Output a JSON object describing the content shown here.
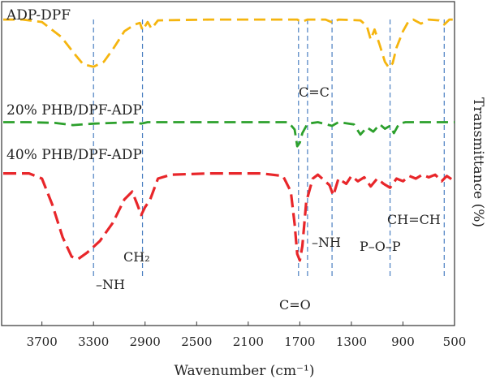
{
  "chart_data": {
    "type": "line",
    "xlabel": "Wavenumber (cm⁻¹)",
    "ylabel": "Transmittance (%)",
    "xlim": [
      4000,
      500
    ],
    "x_reversed": true,
    "x_ticks": [
      3700,
      3300,
      2900,
      2500,
      2100,
      1700,
      1300,
      900,
      500
    ],
    "grid": false,
    "y_ticks_shown": false,
    "series": [
      {
        "name": "ADP-DPF",
        "color": "#f5b50f",
        "dash": "dashed",
        "points": [
          [
            4000,
            0.96
          ],
          [
            3850,
            0.96
          ],
          [
            3700,
            0.93
          ],
          [
            3550,
            0.75
          ],
          [
            3450,
            0.55
          ],
          [
            3380,
            0.42
          ],
          [
            3300,
            0.39
          ],
          [
            3220,
            0.45
          ],
          [
            3150,
            0.6
          ],
          [
            3060,
            0.82
          ],
          [
            2980,
            0.9
          ],
          [
            2940,
            0.92
          ],
          [
            2920,
            0.83
          ],
          [
            2880,
            0.93
          ],
          [
            2850,
            0.85
          ],
          [
            2800,
            0.95
          ],
          [
            2400,
            0.96
          ],
          [
            2000,
            0.96
          ],
          [
            1720,
            0.96
          ],
          [
            1690,
            0.93
          ],
          [
            1640,
            0.96
          ],
          [
            1500,
            0.96
          ],
          [
            1440,
            0.92
          ],
          [
            1400,
            0.96
          ],
          [
            1230,
            0.95
          ],
          [
            1180,
            0.88
          ],
          [
            1150,
            0.72
          ],
          [
            1120,
            0.84
          ],
          [
            1080,
            0.65
          ],
          [
            1040,
            0.45
          ],
          [
            1010,
            0.38
          ],
          [
            980,
            0.43
          ],
          [
            950,
            0.62
          ],
          [
            900,
            0.82
          ],
          [
            860,
            0.93
          ],
          [
            820,
            0.96
          ],
          [
            760,
            0.91
          ],
          [
            700,
            0.96
          ],
          [
            620,
            0.95
          ],
          [
            580,
            0.9
          ],
          [
            540,
            0.96
          ],
          [
            500,
            0.96
          ]
        ]
      },
      {
        "name": "20% PHB/DPF-ADP",
        "color": "#2ca02c",
        "dash": "dashed",
        "points": [
          [
            4000,
            0.95
          ],
          [
            3800,
            0.95
          ],
          [
            3600,
            0.94
          ],
          [
            3460,
            0.91
          ],
          [
            3300,
            0.93
          ],
          [
            3000,
            0.95
          ],
          [
            2930,
            0.93
          ],
          [
            2880,
            0.95
          ],
          [
            2000,
            0.95
          ],
          [
            1790,
            0.95
          ],
          [
            1740,
            0.85
          ],
          [
            1720,
            0.62
          ],
          [
            1700,
            0.67
          ],
          [
            1680,
            0.8
          ],
          [
            1640,
            0.93
          ],
          [
            1560,
            0.95
          ],
          [
            1450,
            0.9
          ],
          [
            1400,
            0.95
          ],
          [
            1280,
            0.92
          ],
          [
            1230,
            0.78
          ],
          [
            1180,
            0.88
          ],
          [
            1130,
            0.82
          ],
          [
            1080,
            0.92
          ],
          [
            1040,
            0.86
          ],
          [
            1000,
            0.9
          ],
          [
            970,
            0.8
          ],
          [
            930,
            0.93
          ],
          [
            880,
            0.95
          ],
          [
            600,
            0.95
          ],
          [
            500,
            0.95
          ]
        ]
      },
      {
        "name": "40% PHB/DPF-ADP",
        "color": "#e8262a",
        "dash": "dashed",
        "points": [
          [
            4000,
            0.94
          ],
          [
            3800,
            0.94
          ],
          [
            3700,
            0.9
          ],
          [
            3620,
            0.7
          ],
          [
            3540,
            0.45
          ],
          [
            3470,
            0.3
          ],
          [
            3420,
            0.28
          ],
          [
            3350,
            0.33
          ],
          [
            3250,
            0.42
          ],
          [
            3150,
            0.56
          ],
          [
            3060,
            0.74
          ],
          [
            3000,
            0.8
          ],
          [
            2960,
            0.7
          ],
          [
            2930,
            0.62
          ],
          [
            2900,
            0.68
          ],
          [
            2860,
            0.74
          ],
          [
            2800,
            0.9
          ],
          [
            2700,
            0.93
          ],
          [
            2400,
            0.94
          ],
          [
            2000,
            0.94
          ],
          [
            1830,
            0.92
          ],
          [
            1770,
            0.8
          ],
          [
            1740,
            0.55
          ],
          [
            1720,
            0.32
          ],
          [
            1700,
            0.27
          ],
          [
            1680,
            0.38
          ],
          [
            1650,
            0.72
          ],
          [
            1600,
            0.9
          ],
          [
            1560,
            0.93
          ],
          [
            1470,
            0.85
          ],
          [
            1440,
            0.77
          ],
          [
            1400,
            0.9
          ],
          [
            1340,
            0.86
          ],
          [
            1300,
            0.92
          ],
          [
            1250,
            0.88
          ],
          [
            1200,
            0.91
          ],
          [
            1150,
            0.84
          ],
          [
            1100,
            0.9
          ],
          [
            1050,
            0.86
          ],
          [
            1000,
            0.83
          ],
          [
            950,
            0.9
          ],
          [
            900,
            0.88
          ],
          [
            850,
            0.92
          ],
          [
            800,
            0.9
          ],
          [
            750,
            0.93
          ],
          [
            700,
            0.91
          ],
          [
            650,
            0.93
          ],
          [
            600,
            0.88
          ],
          [
            560,
            0.92
          ],
          [
            500,
            0.88
          ]
        ]
      }
    ],
    "reference_lines": [
      {
        "x": 3300,
        "color": "#4a7fc1"
      },
      {
        "x": 2920,
        "color": "#4a7fc1"
      },
      {
        "x": 1710,
        "color": "#4a7fc1"
      },
      {
        "x": 1640,
        "color": "#4a7fc1"
      },
      {
        "x": 1450,
        "color": "#4a7fc1"
      },
      {
        "x": 1000,
        "color": "#4a7fc1"
      },
      {
        "x": 580,
        "color": "#4a7fc1"
      }
    ],
    "annotations": [
      {
        "text": "–NH",
        "target_x": 3300
      },
      {
        "text": "CH₂",
        "target_x": 2920
      },
      {
        "text": "C=O",
        "target_x": 1700
      },
      {
        "text": "C=C",
        "target_x": 1640
      },
      {
        "text": "–NH",
        "target_x": 1450
      },
      {
        "text": "P–O–P",
        "target_x": 1000
      },
      {
        "text": "CH=CH",
        "target_x": 580
      }
    ]
  }
}
